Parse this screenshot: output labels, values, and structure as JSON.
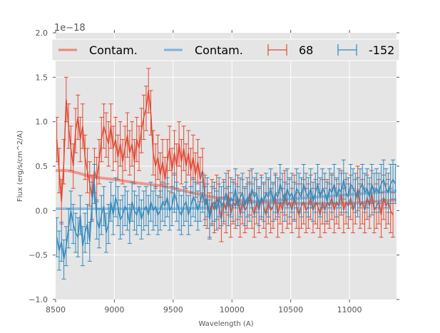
{
  "chart_data": {
    "type": "line",
    "title": "",
    "xlabel": "Wavelength (A)",
    "ylabel": "Flux (erg/s/cm^2/A)",
    "y_offset_label": "1e−18",
    "y_scale": 1e-18,
    "xlim": [
      8500,
      11400
    ],
    "ylim": [
      -1.0,
      2.0
    ],
    "xticks": [
      8500,
      9000,
      9500,
      10000,
      10500,
      11000
    ],
    "xtick_labels": [
      "8500",
      "9000",
      "9500",
      "10000",
      "10500",
      "11000"
    ],
    "yticks": [
      -1.0,
      -0.5,
      0.0,
      0.5,
      1.0,
      1.5,
      2.0
    ],
    "ytick_labels": [
      "−1.0",
      "−0.5",
      "0.0",
      "0.5",
      "1.0",
      "1.5",
      "2.0"
    ],
    "grid": true,
    "legend": {
      "placement": "top",
      "columns": 4,
      "entries": [
        {
          "label": "Contam.",
          "kind": "line",
          "color": "#E8877A"
        },
        {
          "label": "Contam.",
          "kind": "line",
          "color": "#7EB3D6"
        },
        {
          "label": "68",
          "kind": "errorbar",
          "color": "#E24A33"
        },
        {
          "label": "-152",
          "kind": "errorbar",
          "color": "#348ABD"
        }
      ]
    },
    "x_start": 8510,
    "x_step": 20,
    "series": [
      {
        "name": "68",
        "kind": "errorbar",
        "color": "#E24A33",
        "error": 0.25,
        "values": [
          0.8,
          0.45,
          0.1,
          0.55,
          1.25,
          0.95,
          0.7,
          0.5,
          0.9,
          1.05,
          0.8,
          0.95,
          0.6,
          0.45,
          0.3,
          0.15,
          0.45,
          0.35,
          0.55,
          0.8,
          0.95,
          0.85,
          0.75,
          0.95,
          0.7,
          0.8,
          0.6,
          0.75,
          0.55,
          0.7,
          0.85,
          0.65,
          0.75,
          0.55,
          0.8,
          0.7,
          0.9,
          1.05,
          1.15,
          1.35,
          1.1,
          0.65,
          0.5,
          0.6,
          0.4,
          0.55,
          0.35,
          0.55,
          0.7,
          0.45,
          0.65,
          0.5,
          0.75,
          0.55,
          0.7,
          0.5,
          0.65,
          0.45,
          0.6,
          0.4,
          0.55,
          0.35,
          0.45,
          0.15,
          0.05,
          -0.05,
          0.1,
          0.0,
          0.15,
          0.05,
          -0.1,
          0.1,
          0.0,
          0.2,
          -0.05,
          0.1,
          0.05,
          0.15,
          -0.05,
          0.1,
          0.0,
          0.05,
          0.2,
          0.05,
          -0.05,
          0.1,
          0.0,
          0.15,
          0.05,
          -0.05,
          0.1,
          0.0,
          0.05,
          0.15,
          -0.05,
          0.1,
          0.0,
          0.2,
          0.05,
          0.1,
          0.0,
          0.15,
          0.05,
          -0.05,
          0.05,
          0.1,
          0.0,
          0.05,
          0.15,
          0.0,
          0.1,
          0.05,
          -0.05,
          0.1,
          0.0,
          0.1,
          0.05,
          0.15,
          0.0,
          0.1,
          0.05,
          0.2,
          0.0,
          0.1,
          0.05,
          0.15,
          0.0,
          0.1,
          0.25,
          0.05,
          0.1,
          0.0,
          0.15,
          0.05,
          0.2,
          0.0,
          0.05,
          0.1,
          -0.05,
          0.15,
          0.05,
          0.1,
          0.0,
          -0.05
        ]
      },
      {
        "name": "-152",
        "kind": "errorbar",
        "color": "#348ABD",
        "error": 0.22,
        "values": [
          -0.3,
          -0.45,
          -0.35,
          -0.55,
          -0.4,
          -0.2,
          0.0,
          -0.15,
          -0.25,
          -0.3,
          -0.05,
          -0.4,
          -0.25,
          -0.15,
          -0.35,
          0.1,
          0.3,
          -0.1,
          -0.2,
          -0.05,
          0.05,
          -0.25,
          -0.15,
          0.1,
          -0.05,
          0.15,
          0.05,
          -0.1,
          -0.05,
          0.05,
          0.0,
          -0.15,
          0.1,
          0.0,
          -0.05,
          0.05,
          -0.1,
          0.0,
          0.05,
          -0.05,
          0.1,
          0.0,
          0.05,
          -0.05,
          0.0,
          0.1,
          0.05,
          0.15,
          0.0,
          0.05,
          0.2,
          0.1,
          0.0,
          -0.05,
          0.05,
          0.1,
          -0.05,
          0.05,
          0.15,
          0.1,
          0.0,
          0.1,
          0.2,
          0.05,
          0.15,
          -0.1,
          0.05,
          0.1,
          0.0,
          0.15,
          0.05,
          0.1,
          0.2,
          0.05,
          0.15,
          0.1,
          0.25,
          0.05,
          0.15,
          0.2,
          0.05,
          0.15,
          0.1,
          0.25,
          0.15,
          0.2,
          0.05,
          0.15,
          0.1,
          0.2,
          0.15,
          0.25,
          0.1,
          0.2,
          0.15,
          0.3,
          0.2,
          0.1,
          0.25,
          0.15,
          0.2,
          0.1,
          0.25,
          0.2,
          0.15,
          0.3,
          0.2,
          0.15,
          0.25,
          0.1,
          0.2,
          0.3,
          0.15,
          0.25,
          0.2,
          0.1,
          0.25,
          0.2,
          0.3,
          0.15,
          0.25,
          0.2,
          0.35,
          0.2,
          0.15,
          0.3,
          0.25,
          0.2,
          0.15,
          0.25,
          0.3,
          0.2,
          0.25,
          0.15,
          0.3,
          0.2,
          0.25,
          0.2,
          0.3,
          0.35,
          0.25,
          0.2,
          0.3,
          0.35,
          0.3
        ]
      },
      {
        "name": "Contam.",
        "kind": "line",
        "color": "#E8877A",
        "x": [
          8500,
          8600,
          8700,
          8800,
          9000,
          9200,
          9400,
          9600,
          9800,
          10000,
          10200,
          10500,
          10800,
          11000,
          11200,
          11400
        ],
        "values": [
          0.45,
          0.45,
          0.42,
          0.38,
          0.35,
          0.31,
          0.28,
          0.22,
          0.16,
          0.12,
          0.1,
          0.08,
          0.08,
          0.08,
          0.1,
          0.12
        ]
      },
      {
        "name": "Contam.",
        "kind": "line",
        "color": "#7EB3D6",
        "x": [
          8500,
          8800,
          9200,
          9500,
          9800,
          10000,
          10200,
          10500,
          10800,
          11000,
          11200,
          11400
        ],
        "values": [
          0.02,
          0.02,
          0.02,
          0.02,
          0.03,
          0.06,
          0.1,
          0.13,
          0.16,
          0.18,
          0.2,
          0.22
        ]
      }
    ]
  }
}
